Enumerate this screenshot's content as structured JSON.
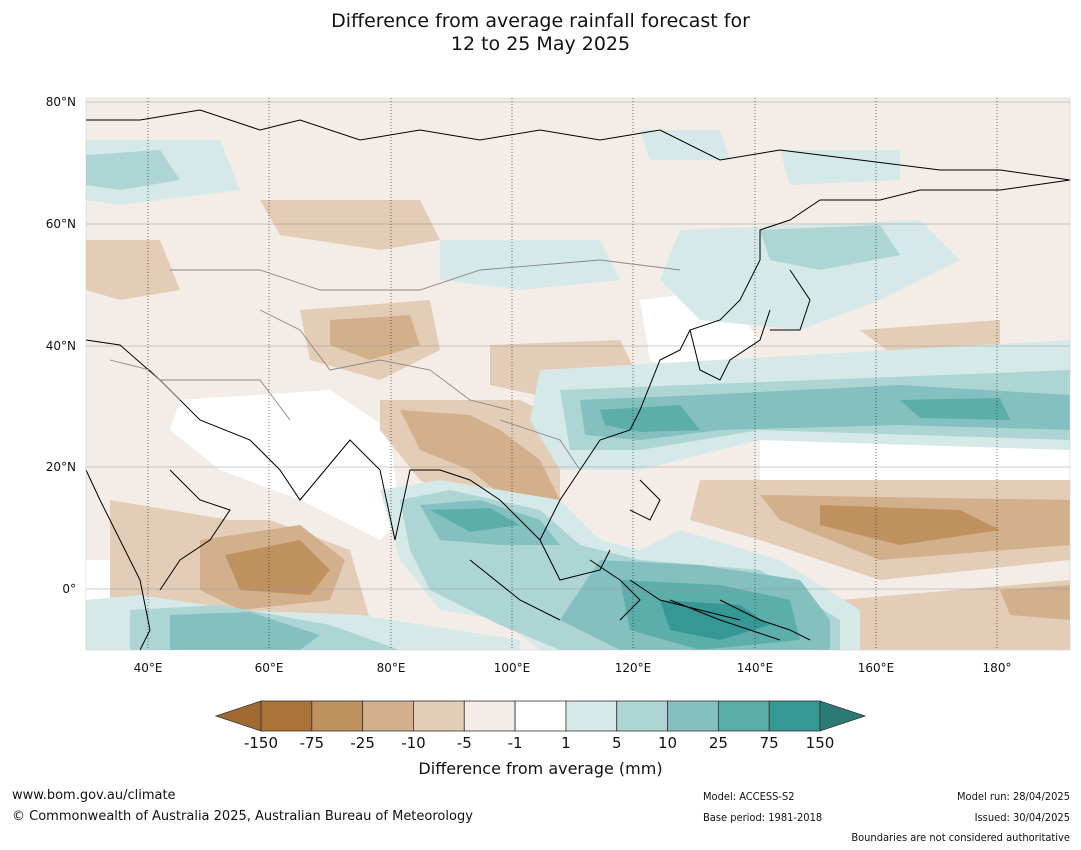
{
  "title": {
    "line1": "Difference from average rainfall forecast for",
    "line2": "12 to 25 May 2025"
  },
  "map": {
    "lat_labels": [
      "80°N",
      "60°N",
      "40°N",
      "20°N",
      "0°"
    ],
    "lon_labels": [
      "40°E",
      "60°E",
      "80°E",
      "100°E",
      "120°E",
      "140°E",
      "160°E",
      "180°"
    ]
  },
  "colorbar": {
    "title": "Difference from average (mm)",
    "ticks": [
      "-150",
      "-75",
      "-25",
      "-10",
      "-5",
      "-1",
      "1",
      "5",
      "10",
      "25",
      "75",
      "150"
    ],
    "colors": [
      "#a06a32",
      "#a97237",
      "#bf915f",
      "#d2b08c",
      "#e3cdb6",
      "#f4ece6",
      "#ffffff",
      "#d5e9e8",
      "#acd5d4",
      "#83c0bf",
      "#5caeab",
      "#369895",
      "#2a7a77"
    ]
  },
  "footer": {
    "website": "www.bom.gov.au/climate",
    "copyright": "© Commonwealth of Australia 2025, Australian Bureau of Meteorology",
    "model": "Model: ACCESS-S2",
    "base_period": "Base period: 1981-2018",
    "model_run": "Model run: 28/04/2025",
    "issued": "Issued: 30/04/2025",
    "boundaries": "Boundaries are not considered authoritative"
  }
}
